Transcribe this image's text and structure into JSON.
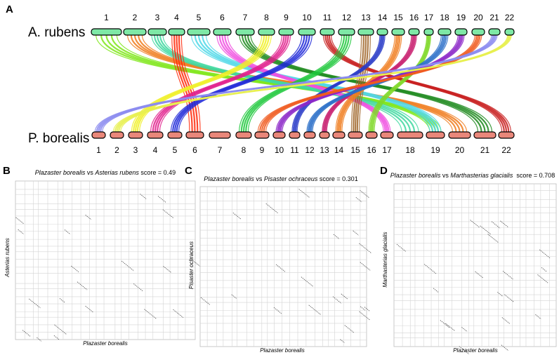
{
  "panels": {
    "A": {
      "letter": "A",
      "top_species": "A. rubens",
      "bottom_species": "P. borealis",
      "top_chromosomes": [
        "1",
        "2",
        "3",
        "4",
        "5",
        "6",
        "7",
        "8",
        "9",
        "10",
        "11",
        "12",
        "13",
        "14",
        "15",
        "16",
        "17",
        "18",
        "19",
        "20",
        "21",
        "22"
      ],
      "bottom_chromosomes": [
        "1",
        "2",
        "3",
        "4",
        "5",
        "6",
        "7",
        "8",
        "9",
        "10",
        "11",
        "12",
        "13",
        "14",
        "15",
        "16",
        "17",
        "18",
        "19",
        "20",
        "21",
        "22"
      ],
      "top_color": "#7ee8a6",
      "bottom_color": "#e9877a",
      "links": [
        {
          "top": "1",
          "bottom": "19",
          "color": "#7fe61a"
        },
        {
          "top": "2",
          "bottom": "20",
          "color": "#f07d1e"
        },
        {
          "top": "3",
          "bottom": "18",
          "color": "#3fd8a0"
        },
        {
          "top": "4",
          "bottom": "6",
          "color": "#ff2a0a"
        },
        {
          "top": "5",
          "bottom": "19",
          "color": "#4fd8e8"
        },
        {
          "top": "6",
          "bottom": "17",
          "color": "#f050e0"
        },
        {
          "top": "7",
          "bottom": "21",
          "color": "#1f8a1f"
        },
        {
          "top": "8",
          "bottom": "3",
          "color": "#f0f028"
        },
        {
          "top": "9",
          "bottom": "4",
          "color": "#e01e8c"
        },
        {
          "top": "10",
          "bottom": "5",
          "color": "#1e28d8"
        },
        {
          "top": "11",
          "bottom": "22",
          "color": "#c81e1e"
        },
        {
          "top": "12",
          "bottom": "8",
          "color": "#1ec83c"
        },
        {
          "top": "13",
          "bottom": "15",
          "color": "#a0662a"
        },
        {
          "top": "14",
          "bottom": "11",
          "color": "#2a3cc8"
        },
        {
          "top": "15",
          "bottom": "14",
          "color": "#f07d1e"
        },
        {
          "top": "16",
          "bottom": "13",
          "color": "#c81e6e"
        },
        {
          "top": "17",
          "bottom": "16",
          "color": "#7fd828"
        },
        {
          "top": "18",
          "bottom": "12",
          "color": "#2a6ec8"
        },
        {
          "top": "19",
          "bottom": "10",
          "color": "#8c28c8"
        },
        {
          "top": "20",
          "bottom": "9",
          "color": "#f05a1e"
        },
        {
          "top": "21",
          "bottom": "1",
          "color": "#8c8cf0"
        },
        {
          "top": "22",
          "bottom": "2",
          "color": "#e8f050"
        }
      ]
    },
    "B": {
      "letter": "B",
      "title_italic": "Plazaster borealis",
      "title_vs": " vs ",
      "title_italic2": "Asterias rubens",
      "title_score": " score = 0.49",
      "xlabel": "Plazaster borealis",
      "ylabel": "Asterias rubens"
    },
    "C": {
      "letter": "C",
      "title_italic": "Plazaster borealis",
      "title_vs": " vs ",
      "title_italic2": "Pisaster ochraceus",
      "title_score": " score = 0.301",
      "xlabel": "Plazaster borealis",
      "ylabel": "Pisaster ochraceus"
    },
    "D": {
      "letter": "D",
      "title_italic": "Plazaster borealis",
      "title_vs": " vs ",
      "title_italic2": "Marthasterias glacialis",
      "title_score": "  score = 0.708",
      "xlabel": "Plazaster borealis",
      "ylabel": "Marthasterias glacialis"
    }
  }
}
